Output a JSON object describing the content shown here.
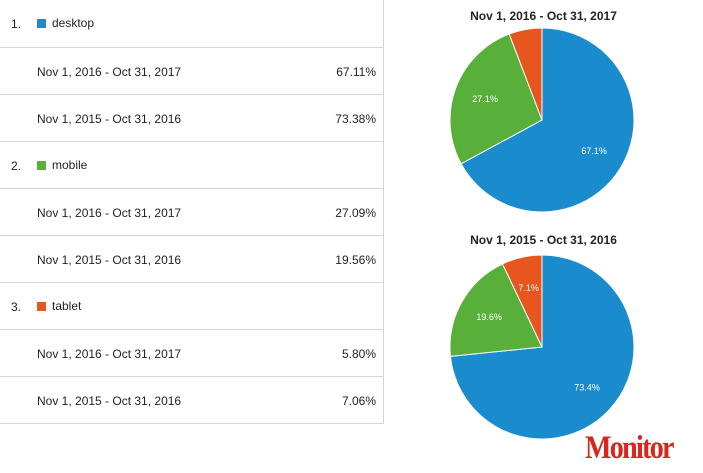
{
  "table": {
    "groups": [
      {
        "index": "1.",
        "device": "desktop",
        "color": "#1a8bcc",
        "rows": [
          {
            "period": "Nov 1, 2016 - Oct 31, 2017",
            "value": "67.11%"
          },
          {
            "period": "Nov 1, 2015 - Oct 31, 2016",
            "value": "73.38%"
          }
        ]
      },
      {
        "index": "2.",
        "device": "mobile",
        "color": "#58b03a",
        "rows": [
          {
            "period": "Nov 1, 2016 - Oct 31, 2017",
            "value": "27.09%"
          },
          {
            "period": "Nov 1, 2015 - Oct 31, 2016",
            "value": "19.56%"
          }
        ]
      },
      {
        "index": "3.",
        "device": "tablet",
        "color": "#e8561f",
        "rows": [
          {
            "period": "Nov 1, 2016 - Oct 31, 2017",
            "value": "5.80%"
          },
          {
            "period": "Nov 1, 2015 - Oct 31, 2016",
            "value": "7.06%"
          }
        ]
      }
    ]
  },
  "chart_data": [
    {
      "type": "pie",
      "title": "Nov 1, 2016 - Oct 31, 2017",
      "slices": [
        {
          "label": "desktop",
          "value": 67.11,
          "color": "#1a8bcc",
          "text": "67.1%"
        },
        {
          "label": "mobile",
          "value": 27.09,
          "color": "#58b03a",
          "text": "27.1%"
        },
        {
          "label": "tablet",
          "value": 5.8,
          "color": "#e8561f",
          "text": ""
        }
      ]
    },
    {
      "type": "pie",
      "title": "Nov 1, 2015 - Oct 31, 2016",
      "slices": [
        {
          "label": "desktop",
          "value": 73.38,
          "color": "#1a8bcc",
          "text": "73.4%"
        },
        {
          "label": "mobile",
          "value": 19.56,
          "color": "#58b03a",
          "text": "19.6%"
        },
        {
          "label": "tablet",
          "value": 7.06,
          "color": "#e8561f",
          "text": "7.1%"
        }
      ]
    }
  ],
  "logo": "Monitor"
}
